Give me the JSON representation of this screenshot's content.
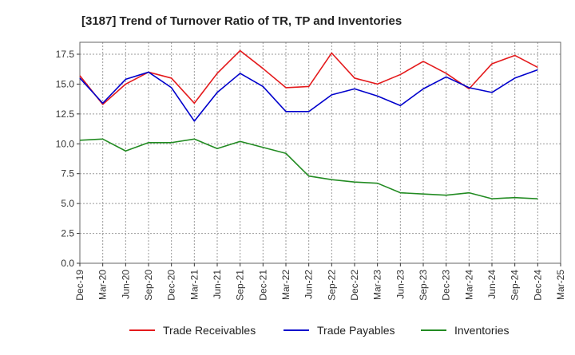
{
  "chart_data": {
    "type": "line",
    "title": "[3187]  Trend of Turnover Ratio of TR, TP and Inventories",
    "xlabel": "",
    "ylabel": "",
    "ylim": [
      0,
      18.5
    ],
    "yticks": [
      "0.0",
      "2.5",
      "5.0",
      "7.5",
      "10.0",
      "12.5",
      "15.0",
      "17.5"
    ],
    "ytick_values": [
      0,
      2.5,
      5,
      7.5,
      10,
      12.5,
      15,
      17.5
    ],
    "x": [
      "Dec-19",
      "Mar-20",
      "Jun-20",
      "Sep-20",
      "Dec-20",
      "Mar-21",
      "Jun-21",
      "Sep-21",
      "Dec-21",
      "Mar-22",
      "Jun-22",
      "Sep-22",
      "Dec-22",
      "Mar-23",
      "Jun-23",
      "Sep-23",
      "Dec-23",
      "Mar-24",
      "Jun-24",
      "Sep-24",
      "Dec-24",
      "Mar-25"
    ],
    "grid": true,
    "legend_position": "bottom",
    "series": [
      {
        "name": "Trade Receivables",
        "color": "#e41a1c",
        "values": [
          15.7,
          13.3,
          15.0,
          16.0,
          15.5,
          13.4,
          15.9,
          17.8,
          16.3,
          14.7,
          14.8,
          17.6,
          15.5,
          15.0,
          15.8,
          16.9,
          15.9,
          14.6,
          16.7,
          17.4,
          16.4,
          null
        ]
      },
      {
        "name": "Trade Payables",
        "color": "#0000cc",
        "values": [
          15.5,
          13.4,
          15.4,
          16.0,
          14.7,
          11.9,
          14.3,
          15.9,
          14.8,
          12.7,
          12.7,
          14.1,
          14.6,
          14.0,
          13.2,
          14.6,
          15.6,
          14.7,
          14.3,
          15.5,
          16.2,
          null
        ]
      },
      {
        "name": "Inventories",
        "color": "#228b22",
        "values": [
          10.3,
          10.4,
          9.4,
          10.1,
          10.1,
          10.4,
          9.6,
          10.2,
          9.7,
          9.2,
          7.3,
          7.0,
          6.8,
          6.7,
          5.9,
          5.8,
          5.7,
          5.9,
          5.4,
          5.5,
          5.4,
          null
        ]
      }
    ]
  }
}
